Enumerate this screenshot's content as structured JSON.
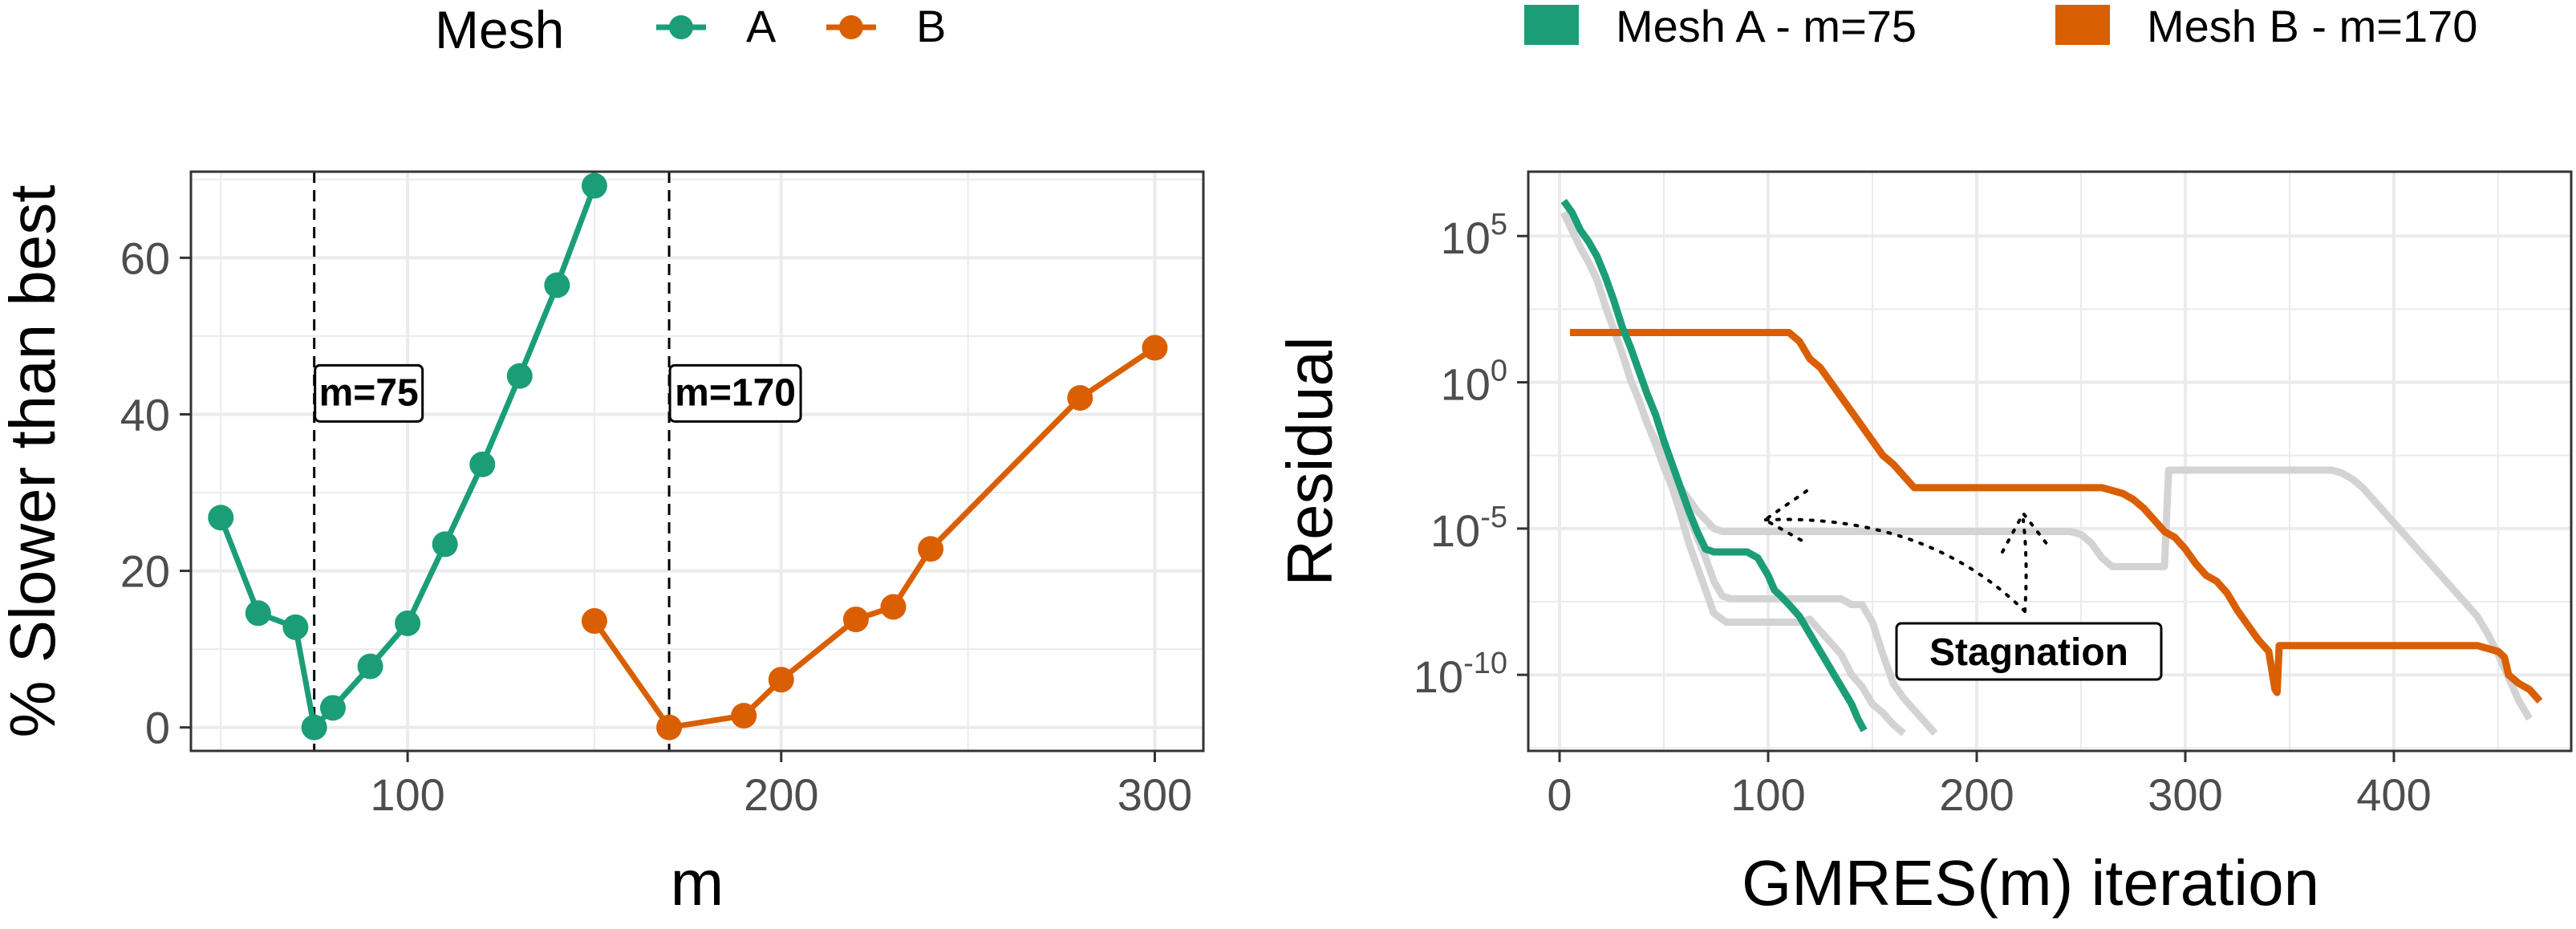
{
  "colors": {
    "mesh_a": "#1b9e77",
    "mesh_b": "#d95f02",
    "gray_runs": "#d3d3d3"
  },
  "legend_left": {
    "title": "Mesh",
    "entries": [
      "A",
      "B"
    ]
  },
  "legend_right": {
    "entries": [
      "Mesh A - m=75",
      "Mesh B - m=170"
    ]
  },
  "chart_data": [
    {
      "type": "line",
      "title": "",
      "xlabel": "m",
      "ylabel": "% Slower than best",
      "xlim": [
        42,
        313
      ],
      "ylim": [
        -3,
        71
      ],
      "x_ticks": [
        100,
        200,
        300
      ],
      "x_tick_labels": [
        "100",
        "200",
        "300"
      ],
      "y_ticks": [
        0,
        20,
        40,
        60
      ],
      "y_tick_labels": [
        "0",
        "20",
        "40",
        "60"
      ],
      "vlines": [
        {
          "x": 75,
          "label": "m=75",
          "label_y": 39.5
        },
        {
          "x": 170,
          "label": "m=170",
          "label_y": 39.5
        }
      ],
      "series": [
        {
          "name": "A",
          "color_key": "mesh_a",
          "x": [
            50,
            60,
            70,
            75,
            80,
            90,
            100,
            110,
            120,
            130,
            140,
            150
          ],
          "values": [
            26.8,
            14.6,
            12.8,
            0,
            2.5,
            7.8,
            13.3,
            23.4,
            33.6,
            44.9,
            56.5,
            69.2
          ]
        },
        {
          "name": "B",
          "color_key": "mesh_b",
          "x": [
            150,
            170,
            190,
            200,
            220,
            230,
            240,
            280,
            300
          ],
          "values": [
            13.6,
            0,
            1.5,
            6.1,
            13.8,
            15.4,
            22.8,
            42.1,
            48.5
          ]
        }
      ]
    },
    {
      "type": "line",
      "title": "",
      "xlabel": "GMRES(m) iteration",
      "ylabel": "Residual",
      "y_scale": "log10",
      "xlim": [
        -15,
        485
      ],
      "ylim_log10": [
        -12.6,
        7.2
      ],
      "x_ticks": [
        0,
        100,
        200,
        300,
        400
      ],
      "x_tick_labels": [
        "0",
        "100",
        "200",
        "300",
        "400"
      ],
      "y_ticks_log10": [
        5,
        0,
        -5,
        -10
      ],
      "y_tick_labels": [
        {
          "base": "10",
          "exp": "5"
        },
        {
          "base": "10",
          "exp": "0"
        },
        {
          "base": "10",
          "exp": "-5"
        },
        {
          "base": "10",
          "exp": "-10"
        }
      ],
      "annotation": {
        "label": "Stagnation",
        "x": 225,
        "y_log10": -9.2
      },
      "gray_series_log10": [
        {
          "x": [
            2,
            6,
            10,
            14,
            18,
            22,
            26,
            30,
            34,
            38,
            42,
            46,
            50,
            54,
            58,
            62,
            66,
            70,
            74,
            80,
            85,
            92,
            98,
            105,
            110,
            115,
            120,
            125,
            130,
            135,
            140,
            145,
            150,
            155,
            160,
            165
          ],
          "values": [
            5.8,
            5.2,
            4.6,
            4.1,
            3.5,
            2.6,
            1.8,
            1.0,
            0.1,
            -0.6,
            -1.4,
            -2.1,
            -2.9,
            -3.6,
            -4.5,
            -5.5,
            -6.3,
            -7.1,
            -7.9,
            -8.2,
            -8.2,
            -8.2,
            -8.2,
            -8.2,
            -8.2,
            -8.2,
            -8.1,
            -8.5,
            -8.9,
            -9.3,
            -10.0,
            -10.4,
            -11.0,
            -11.3,
            -11.7,
            -12.0
          ]
        },
        {
          "x": [
            2,
            6,
            10,
            14,
            18,
            22,
            26,
            30,
            34,
            38,
            42,
            46,
            50,
            54,
            58,
            62,
            66,
            70,
            74,
            78,
            82,
            86,
            90,
            95,
            100,
            105,
            110,
            115,
            120,
            125,
            130,
            135,
            140,
            145,
            150,
            155,
            160,
            165,
            170,
            175,
            180
          ],
          "values": [
            5.8,
            5.2,
            4.6,
            4.1,
            3.5,
            2.6,
            1.8,
            1.0,
            0.1,
            -0.6,
            -1.4,
            -2.0,
            -2.7,
            -3.3,
            -3.9,
            -4.6,
            -5.3,
            -6.0,
            -6.8,
            -7.3,
            -7.4,
            -7.4,
            -7.4,
            -7.4,
            -7.4,
            -7.4,
            -7.4,
            -7.4,
            -7.4,
            -7.4,
            -7.4,
            -7.4,
            -7.6,
            -7.6,
            -8.2,
            -9.3,
            -10.3,
            -10.8,
            -11.2,
            -11.6,
            -12.0
          ]
        },
        {
          "x": [
            2,
            6,
            10,
            14,
            18,
            22,
            26,
            30,
            34,
            38,
            42,
            46,
            50,
            54,
            58,
            62,
            66,
            70,
            74,
            78,
            82,
            86,
            90,
            94,
            100,
            110,
            120,
            130,
            140,
            150,
            160,
            170,
            180,
            190,
            200,
            210,
            220,
            230,
            240,
            245,
            250,
            255,
            260,
            265,
            270,
            275,
            280,
            285,
            290,
            292,
            295,
            300,
            305,
            310,
            315,
            320,
            325,
            330,
            335,
            340,
            345,
            350,
            355,
            360,
            365,
            370,
            375,
            380,
            385,
            390,
            395,
            400,
            405,
            410,
            415,
            420,
            425,
            430,
            435,
            440,
            445,
            450,
            455,
            460,
            465
          ],
          "values": [
            5.8,
            5.2,
            4.6,
            4.1,
            3.5,
            2.6,
            1.8,
            1.0,
            0.1,
            -0.6,
            -1.4,
            -2.0,
            -2.6,
            -3.1,
            -3.6,
            -4.0,
            -4.4,
            -4.7,
            -5.0,
            -5.1,
            -5.1,
            -5.1,
            -5.1,
            -5.1,
            -5.1,
            -5.1,
            -5.1,
            -5.1,
            -5.1,
            -5.1,
            -5.1,
            -5.1,
            -5.1,
            -5.1,
            -5.1,
            -5.1,
            -5.1,
            -5.1,
            -5.1,
            -5.1,
            -5.2,
            -5.5,
            -6.0,
            -6.3,
            -6.3,
            -6.3,
            -6.3,
            -6.3,
            -6.3,
            -3.0,
            -3.0,
            -3.0,
            -3.0,
            -3.0,
            -3.0,
            -3.0,
            -3.0,
            -3.0,
            -3.0,
            -3.0,
            -3.0,
            -3.0,
            -3.0,
            -3.0,
            -3.0,
            -3.0,
            -3.1,
            -3.3,
            -3.6,
            -4.0,
            -4.4,
            -4.8,
            -5.2,
            -5.6,
            -6.0,
            -6.4,
            -6.8,
            -7.2,
            -7.6,
            -8.0,
            -8.6,
            -9.3,
            -10.1,
            -10.9,
            -11.5
          ]
        }
      ],
      "series": [
        {
          "name": "Mesh A - m=75",
          "color_key": "mesh_a",
          "x": [
            2,
            6,
            10,
            14,
            18,
            22,
            26,
            30,
            34,
            38,
            42,
            46,
            50,
            54,
            58,
            62,
            66,
            70,
            74,
            80,
            85,
            90,
            95,
            100,
            103,
            106,
            110,
            115,
            120,
            125,
            130,
            135,
            140,
            143,
            146
          ],
          "values": [
            6.2,
            5.8,
            5.2,
            4.8,
            4.3,
            3.6,
            2.8,
            1.9,
            1.2,
            0.4,
            -0.4,
            -1.1,
            -2.0,
            -2.8,
            -3.6,
            -4.4,
            -5.1,
            -5.7,
            -5.8,
            -5.8,
            -5.8,
            -5.8,
            -6.0,
            -6.6,
            -7.1,
            -7.3,
            -7.6,
            -8.0,
            -8.6,
            -9.2,
            -9.8,
            -10.4,
            -11.0,
            -11.5,
            -11.9
          ]
        },
        {
          "name": "Mesh B - m=170",
          "color_key": "mesh_b",
          "x": [
            5,
            20,
            40,
            60,
            80,
            100,
            110,
            115,
            120,
            125,
            130,
            135,
            140,
            145,
            150,
            155,
            160,
            165,
            170,
            175,
            185,
            200,
            240,
            260,
            265,
            270,
            275,
            280,
            285,
            290,
            295,
            300,
            305,
            310,
            315,
            320,
            325,
            330,
            335,
            340,
            343,
            344,
            345,
            350,
            360,
            380,
            400,
            420,
            430,
            440,
            445,
            450,
            453,
            455,
            460,
            465,
            470
          ],
          "values": [
            1.7,
            1.7,
            1.7,
            1.7,
            1.7,
            1.7,
            1.7,
            1.4,
            0.8,
            0.5,
            0.0,
            -0.5,
            -1.0,
            -1.5,
            -2.0,
            -2.5,
            -2.8,
            -3.2,
            -3.6,
            -3.6,
            -3.6,
            -3.6,
            -3.6,
            -3.6,
            -3.7,
            -3.8,
            -4.0,
            -4.3,
            -4.7,
            -5.1,
            -5.3,
            -5.7,
            -6.2,
            -6.6,
            -6.8,
            -7.2,
            -7.8,
            -8.3,
            -8.8,
            -9.2,
            -10.5,
            -10.6,
            -9.0,
            -9.0,
            -9.0,
            -9.0,
            -9.0,
            -9.0,
            -9.0,
            -9.0,
            -9.1,
            -9.2,
            -9.4,
            -10.0,
            -10.3,
            -10.5,
            -10.9
          ]
        }
      ]
    }
  ]
}
